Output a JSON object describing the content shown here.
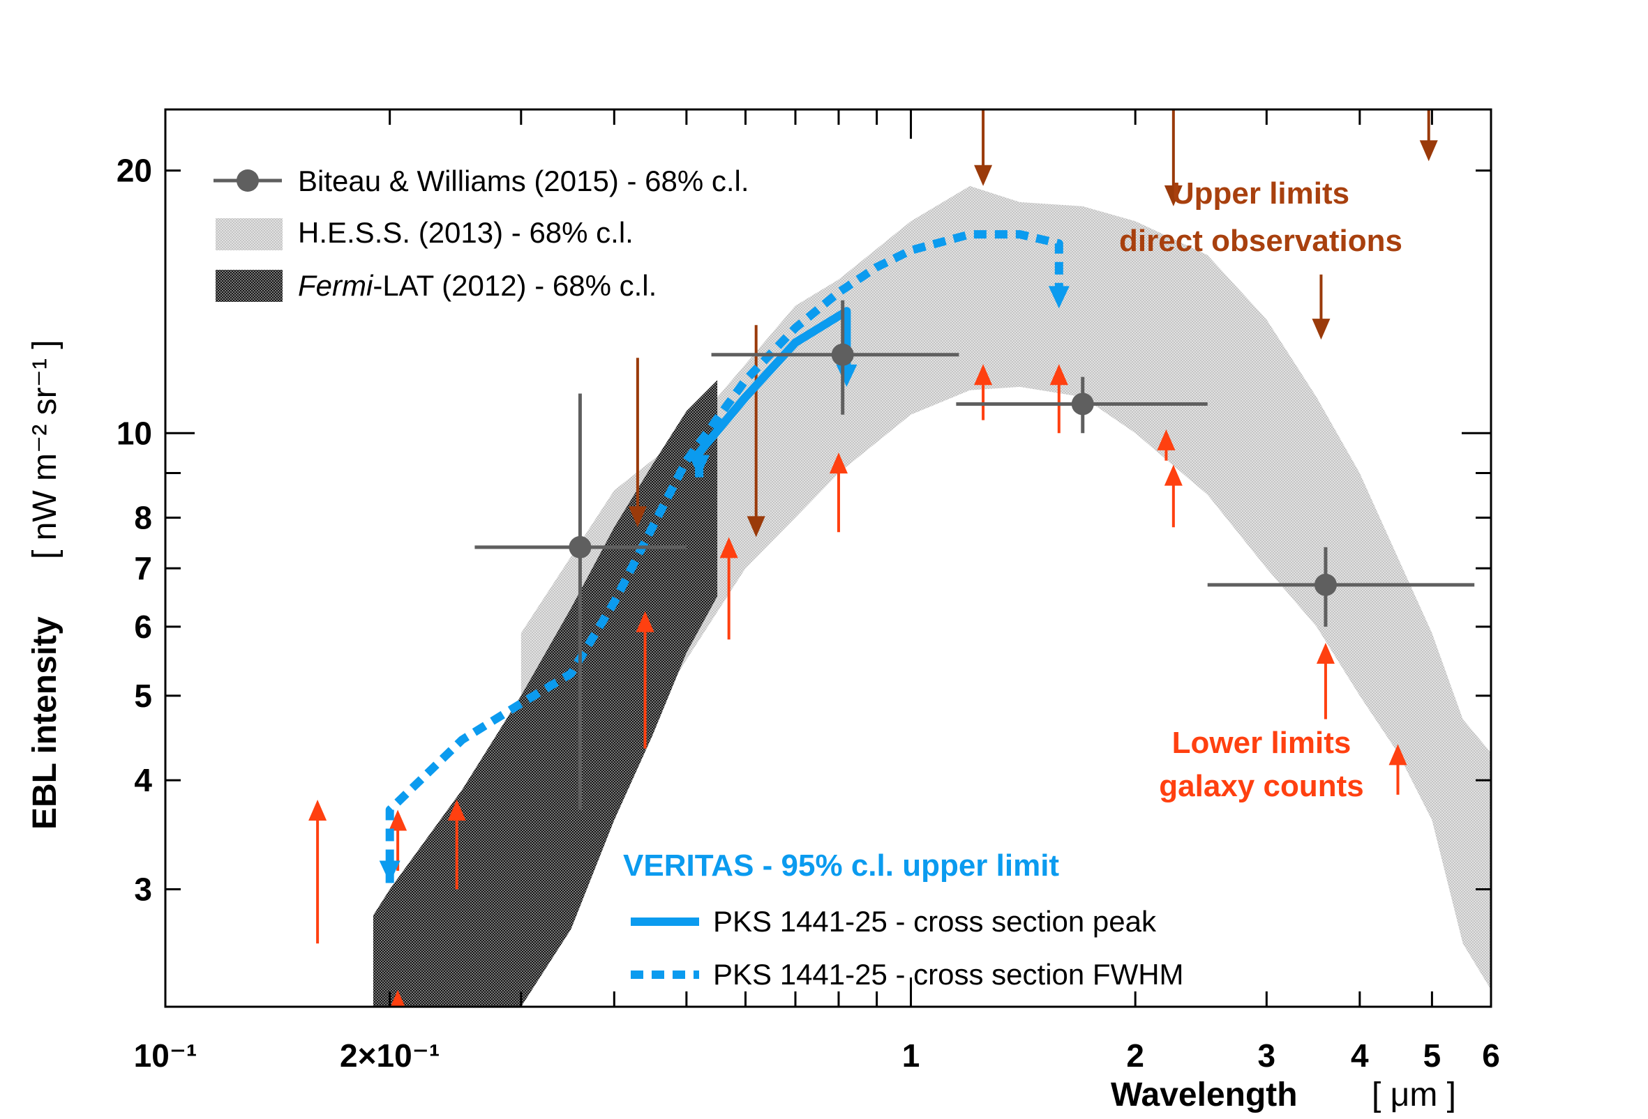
{
  "chart_data": {
    "type": "scatter",
    "x_scale": "log",
    "y_scale": "log",
    "xlim": [
      0.1,
      6
    ],
    "ylim": [
      2.2,
      23.5
    ],
    "xlabel": "Wavelength",
    "xunit": "[ μm ]",
    "ylabel": "EBL intensity",
    "yunit": "[ nW m⁻² sr⁻¹ ]",
    "x_ticks": [
      {
        "value": 0.1,
        "label": "10⁻¹"
      },
      {
        "value": 0.2,
        "label": "2×10⁻¹"
      },
      {
        "value": 1,
        "label": "1"
      },
      {
        "value": 2,
        "label": "2"
      },
      {
        "value": 3,
        "label": "3"
      },
      {
        "value": 4,
        "label": "4"
      },
      {
        "value": 5,
        "label": "5"
      },
      {
        "value": 6,
        "label": "6"
      }
    ],
    "y_ticks": [
      {
        "value": 3,
        "label": "3"
      },
      {
        "value": 4,
        "label": "4"
      },
      {
        "value": 5,
        "label": "5"
      },
      {
        "value": 6,
        "label": "6"
      },
      {
        "value": 7,
        "label": "7"
      },
      {
        "value": 8,
        "label": "8"
      },
      {
        "value": 10,
        "label": "10"
      },
      {
        "value": 20,
        "label": "20"
      }
    ],
    "legend": {
      "placement": "top-left",
      "entries": [
        {
          "label": "Biteau & Williams (2015) - 68% c.l.",
          "style": "marker-line"
        },
        {
          "label": "H.E.S.S. (2013) - 68% c.l.",
          "style": "light-band"
        },
        {
          "label_italic": "Fermi",
          "label": "-LAT (2012) - 68% c.l.",
          "style": "dark-band"
        }
      ]
    },
    "veritas_legend": {
      "title": "VERITAS - 95% c.l. upper limit",
      "entries": [
        {
          "label": "PKS 1441-25 - cross section peak",
          "style": "solid"
        },
        {
          "label": "PKS 1441-25 - cross section FWHM",
          "style": "dashed"
        }
      ]
    },
    "annotations": {
      "upper_limits": [
        "Upper limits",
        "direct observations"
      ],
      "lower_limits": [
        "Lower limits",
        "galaxy counts"
      ]
    },
    "colors": {
      "biteau": "#5f5f5f",
      "hess_band": "#d4d4d4",
      "fermi_band": "#4a4a4a",
      "veritas": "#0b9bef",
      "upper_limit": "#9a3a0a",
      "lower_limit": "#ff4010",
      "annot_upper": "#a8400e",
      "annot_lower": "#ff4010"
    },
    "series": [
      {
        "name": "Biteau & Williams (2015) - 68% c.l.",
        "type": "errorbar",
        "points": [
          {
            "x": 0.36,
            "y": 7.4,
            "x_lo": 0.26,
            "x_hi": 0.5,
            "y_lo": 3.7,
            "y_hi": 11.1
          },
          {
            "x": 0.81,
            "y": 12.3,
            "x_lo": 0.54,
            "x_hi": 1.16,
            "y_lo": 10.5,
            "y_hi": 14.2
          },
          {
            "x": 1.7,
            "y": 10.8,
            "x_lo": 1.15,
            "x_hi": 2.5,
            "y_lo": 10.0,
            "y_hi": 11.6
          },
          {
            "x": 3.6,
            "y": 6.7,
            "x_lo": 2.5,
            "x_hi": 5.7,
            "y_lo": 6.0,
            "y_hi": 7.4
          }
        ]
      },
      {
        "name": "H.E.S.S. (2013) - 68% c.l.",
        "type": "band",
        "points": [
          {
            "x": 0.3,
            "lo": 2.4,
            "hi": 5.9
          },
          {
            "x": 0.4,
            "lo": 4.0,
            "hi": 8.6
          },
          {
            "x": 0.5,
            "lo": 5.5,
            "hi": 10.0
          },
          {
            "x": 0.6,
            "lo": 7.0,
            "hi": 12.0
          },
          {
            "x": 0.7,
            "lo": 8.0,
            "hi": 14.0
          },
          {
            "x": 0.8,
            "lo": 9.0,
            "hi": 15.0
          },
          {
            "x": 1.0,
            "lo": 10.5,
            "hi": 17.5
          },
          {
            "x": 1.2,
            "lo": 11.2,
            "hi": 19.2
          },
          {
            "x": 1.4,
            "lo": 11.3,
            "hi": 18.4
          },
          {
            "x": 1.7,
            "lo": 11.0,
            "hi": 18.2
          },
          {
            "x": 2.0,
            "lo": 10.0,
            "hi": 17.5
          },
          {
            "x": 2.5,
            "lo": 8.5,
            "hi": 16.0
          },
          {
            "x": 3.0,
            "lo": 7.0,
            "hi": 13.5
          },
          {
            "x": 3.5,
            "lo": 6.0,
            "hi": 11.0
          },
          {
            "x": 4.0,
            "lo": 5.0,
            "hi": 9.0
          },
          {
            "x": 4.5,
            "lo": 4.3,
            "hi": 7.2
          },
          {
            "x": 5.0,
            "lo": 3.6,
            "hi": 5.9
          },
          {
            "x": 5.5,
            "lo": 2.6,
            "hi": 4.7
          },
          {
            "x": 6.0,
            "lo": 2.3,
            "hi": 4.3
          }
        ]
      },
      {
        "name": "Fermi-LAT (2012) - 68% c.l.",
        "type": "band",
        "points": [
          {
            "x": 0.19,
            "lo": 2.2,
            "hi": 2.8
          },
          {
            "x": 0.2,
            "lo": 2.2,
            "hi": 3.0
          },
          {
            "x": 0.25,
            "lo": 2.2,
            "hi": 3.9
          },
          {
            "x": 0.3,
            "lo": 2.2,
            "hi": 5.0
          },
          {
            "x": 0.35,
            "lo": 2.7,
            "hi": 6.3
          },
          {
            "x": 0.4,
            "lo": 3.6,
            "hi": 7.8
          },
          {
            "x": 0.45,
            "lo": 4.5,
            "hi": 9.2
          },
          {
            "x": 0.5,
            "lo": 5.6,
            "hi": 10.6
          },
          {
            "x": 0.55,
            "lo": 6.5,
            "hi": 11.5
          }
        ]
      },
      {
        "name": "PKS 1441-25 - cross section peak",
        "type": "upper-limit-line",
        "points": [
          {
            "x": 0.52,
            "y": 8.9
          },
          {
            "x": 0.52,
            "y": 9.5
          },
          {
            "x": 0.6,
            "y": 11.0
          },
          {
            "x": 0.7,
            "y": 12.7
          },
          {
            "x": 0.82,
            "y": 13.8
          },
          {
            "x": 0.82,
            "y": 11.3
          }
        ]
      },
      {
        "name": "PKS 1441-25 - cross section FWHM",
        "type": "upper-limit-line",
        "points": [
          {
            "x": 0.2,
            "y": 3.05
          },
          {
            "x": 0.2,
            "y": 3.7
          },
          {
            "x": 0.25,
            "y": 4.45
          },
          {
            "x": 0.3,
            "y": 4.9
          },
          {
            "x": 0.35,
            "y": 5.3
          },
          {
            "x": 0.4,
            "y": 6.4
          },
          {
            "x": 0.45,
            "y": 7.8
          },
          {
            "x": 0.5,
            "y": 9.3
          },
          {
            "x": 0.6,
            "y": 11.5
          },
          {
            "x": 0.7,
            "y": 13.2
          },
          {
            "x": 0.8,
            "y": 14.5
          },
          {
            "x": 0.9,
            "y": 15.5
          },
          {
            "x": 1.0,
            "y": 16.2
          },
          {
            "x": 1.2,
            "y": 16.9
          },
          {
            "x": 1.4,
            "y": 16.9
          },
          {
            "x": 1.58,
            "y": 16.5
          },
          {
            "x": 1.58,
            "y": 13.9
          }
        ]
      },
      {
        "name": "Upper limits direct observations",
        "type": "arrows-down",
        "points": [
          {
            "x": 0.43,
            "y_start": 12.2,
            "y_end": 7.8
          },
          {
            "x": 0.62,
            "y_start": 13.3,
            "y_end": 7.6
          },
          {
            "x": 1.25,
            "y_start": 25.5,
            "y_end": 19.2
          },
          {
            "x": 2.25,
            "y_start": 25.5,
            "y_end": 18.2
          },
          {
            "x": 3.55,
            "y_start": 15.2,
            "y_end": 12.8
          },
          {
            "x": 4.95,
            "y_start": 25.5,
            "y_end": 20.5
          }
        ]
      },
      {
        "name": "Lower limits galaxy counts",
        "type": "arrows-up",
        "points": [
          {
            "x": 0.16,
            "y_start": 2.6,
            "y_end": 3.8
          },
          {
            "x": 0.205,
            "y_start": 3.15,
            "y_end": 3.7
          },
          {
            "x": 0.205,
            "y_start": 1.6,
            "y_end": 2.3
          },
          {
            "x": 0.246,
            "y_start": 3.0,
            "y_end": 3.8
          },
          {
            "x": 0.44,
            "y_start": 4.35,
            "y_end": 6.25
          },
          {
            "x": 0.57,
            "y_start": 5.8,
            "y_end": 7.6
          },
          {
            "x": 0.8,
            "y_start": 7.7,
            "y_end": 9.5
          },
          {
            "x": 1.25,
            "y_start": 10.35,
            "y_end": 12.0
          },
          {
            "x": 1.58,
            "y_start": 10.0,
            "y_end": 12.0
          },
          {
            "x": 2.2,
            "y_start": 9.3,
            "y_end": 10.1
          },
          {
            "x": 2.25,
            "y_start": 7.8,
            "y_end": 9.2
          },
          {
            "x": 3.6,
            "y_start": 4.7,
            "y_end": 5.75
          },
          {
            "x": 4.5,
            "y_start": 3.85,
            "y_end": 4.4
          }
        ]
      }
    ]
  }
}
